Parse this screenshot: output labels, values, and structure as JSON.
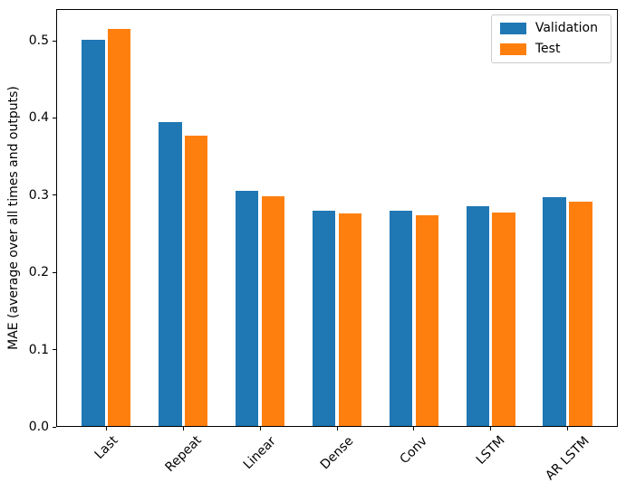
{
  "figure": {
    "background": "#ffffff",
    "axes_color": "#000000",
    "legend_border_color": "#cccccc"
  },
  "chart_data": {
    "type": "bar",
    "title": "",
    "xlabel": "",
    "ylabel": "MAE (average over all times and outputs)",
    "categories": [
      "Last",
      "Repeat",
      "Linear",
      "Dense",
      "Conv",
      "LSTM",
      "AR LSTM"
    ],
    "series": [
      {
        "name": "Validation",
        "color": "#1f77b4",
        "values": [
          0.501,
          0.395,
          0.306,
          0.28,
          0.28,
          0.286,
          0.298
        ]
      },
      {
        "name": "Test",
        "color": "#ff7f0e",
        "values": [
          0.515,
          0.377,
          0.299,
          0.276,
          0.274,
          0.277,
          0.292
        ]
      }
    ],
    "ylim": [
      0,
      0.541
    ],
    "yticks": [
      {
        "value": 0.0,
        "label": "0.0"
      },
      {
        "value": 0.1,
        "label": "0.1"
      },
      {
        "value": 0.2,
        "label": "0.2"
      },
      {
        "value": 0.3,
        "label": "0.3"
      },
      {
        "value": 0.4,
        "label": "0.4"
      },
      {
        "value": 0.5,
        "label": "0.5"
      }
    ],
    "x_tick_rotation": 45,
    "grid": false,
    "legend": {
      "position": "upper right",
      "entries": [
        "Validation",
        "Test"
      ]
    },
    "x_margin": 0.652,
    "bar_width": 0.3,
    "bar_offset": 0.17
  }
}
